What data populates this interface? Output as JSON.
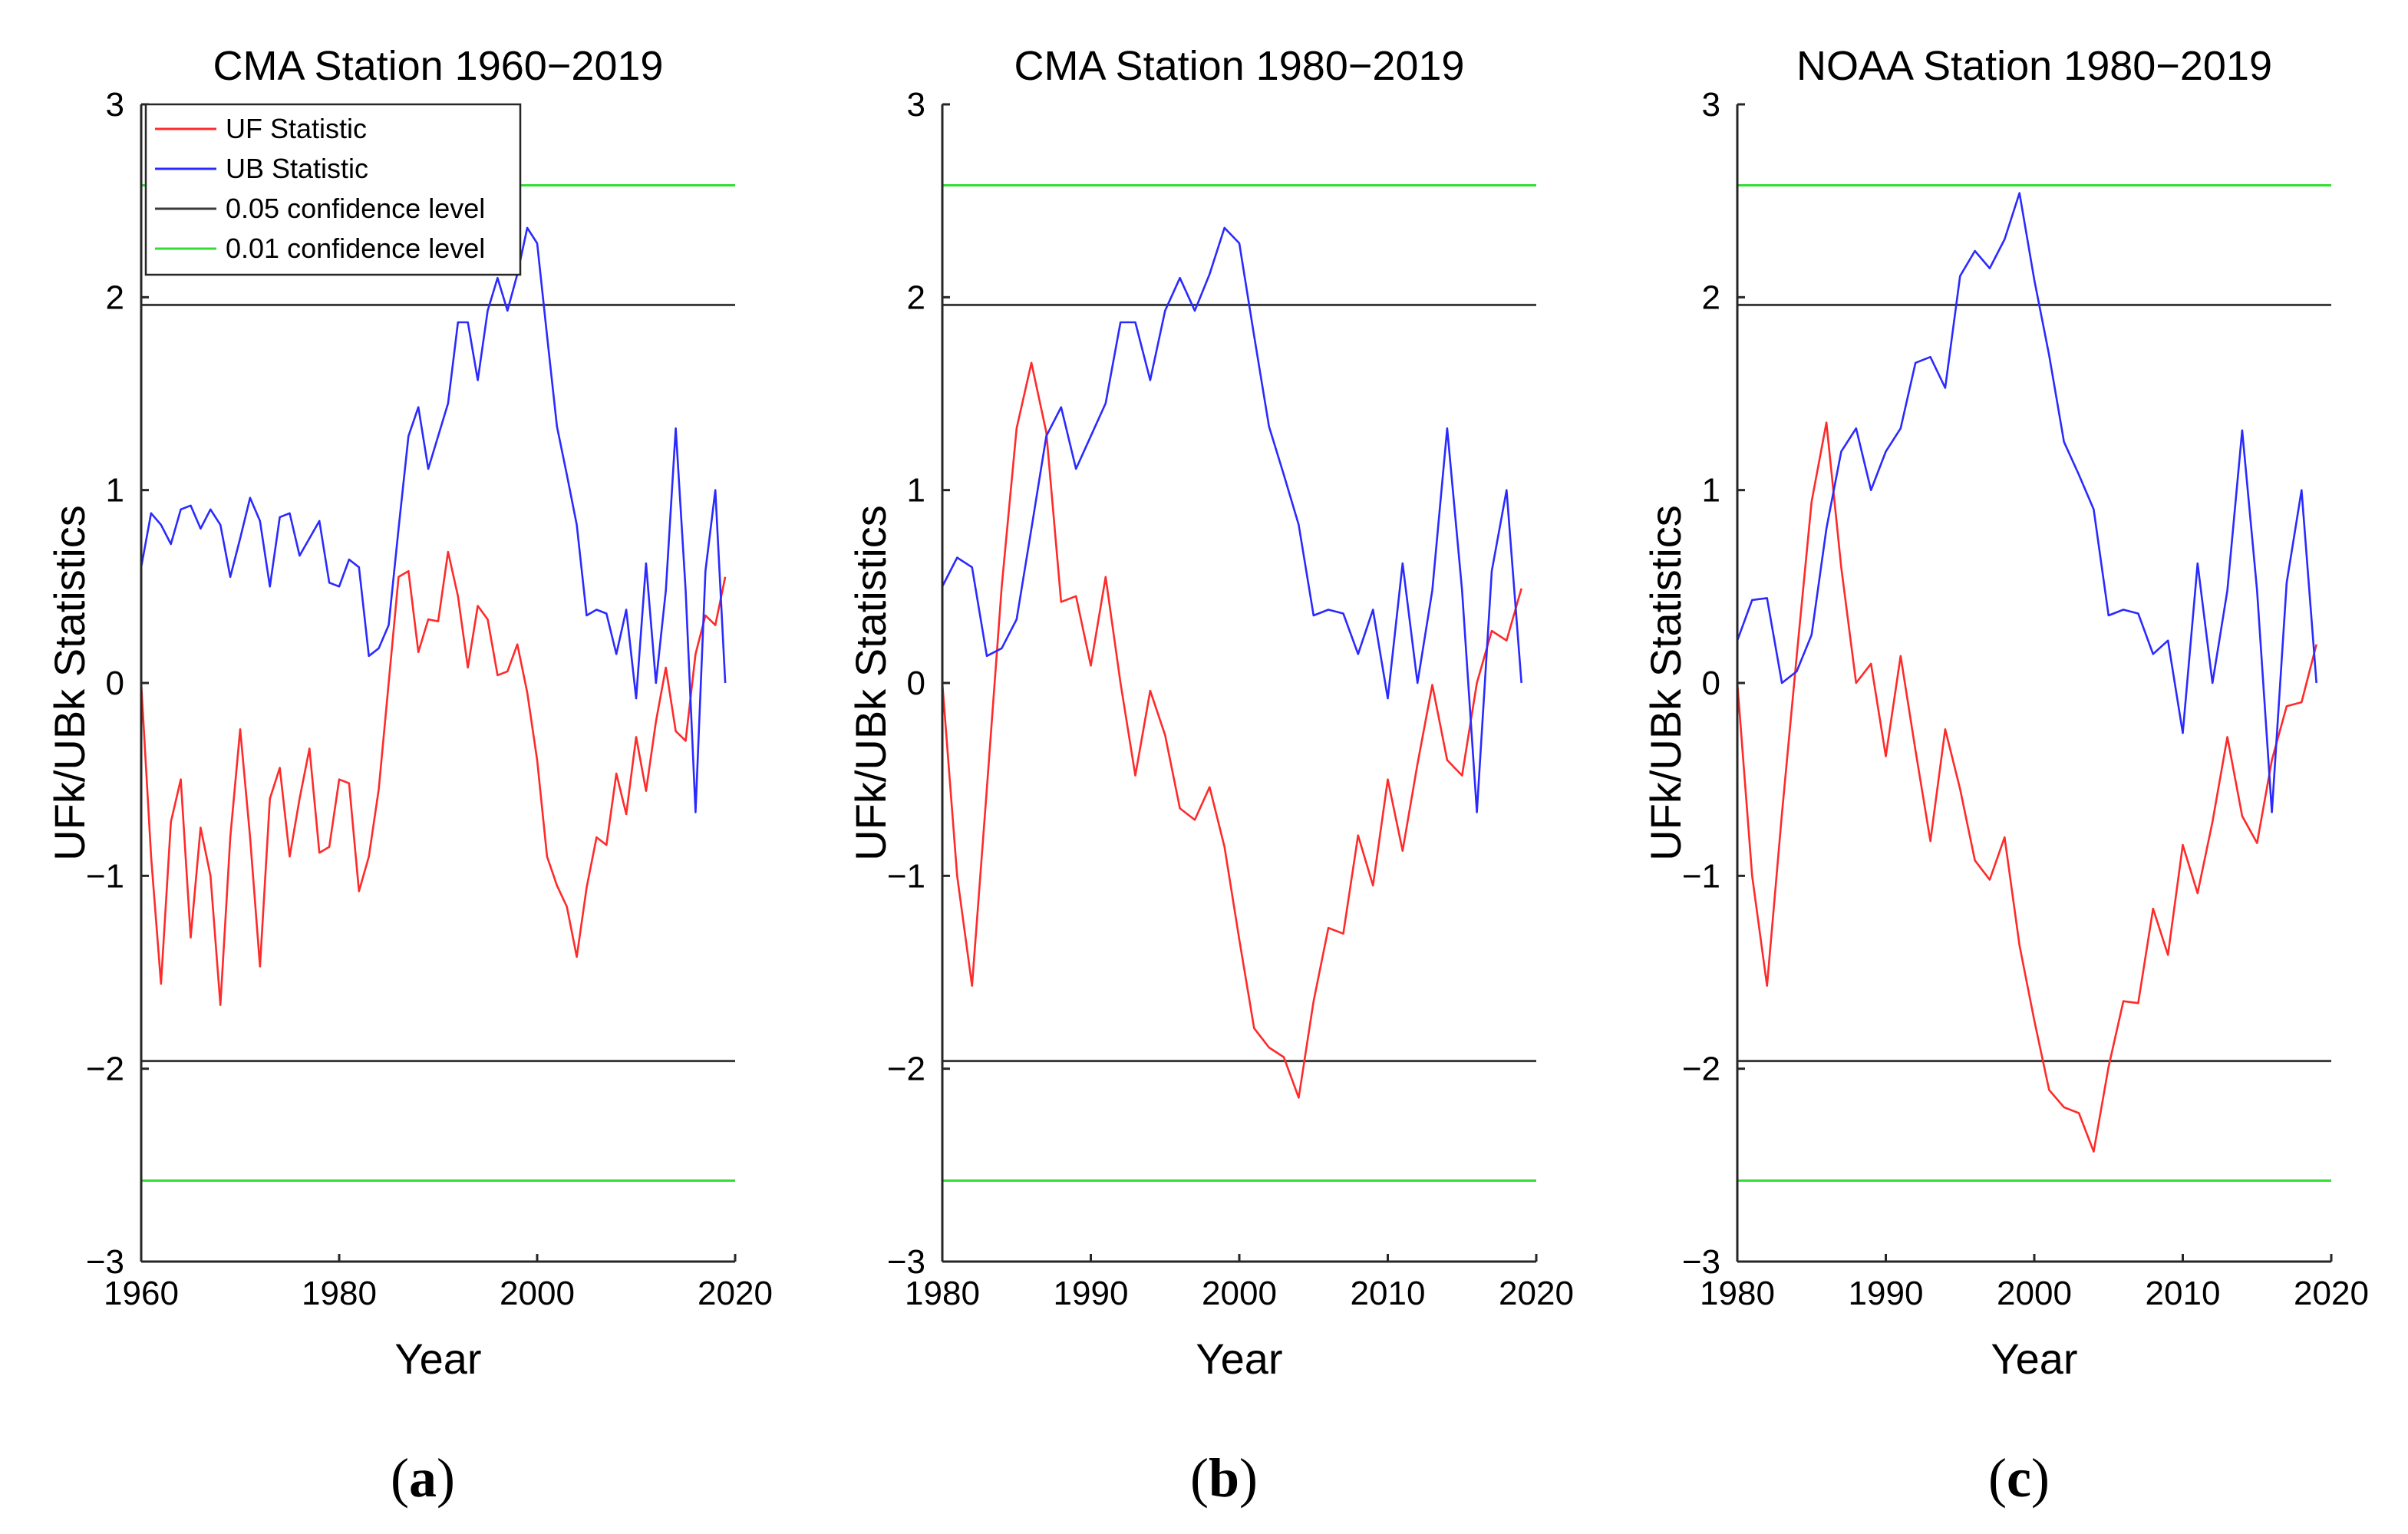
{
  "colors": {
    "uf": "#ff2a2a",
    "ub": "#2a2aff",
    "c05": "#3a3a3a",
    "c01": "#33dd33"
  },
  "legend": {
    "uf": "UF Statistic",
    "ub": "UB Statistic",
    "c05": "0.05 confidence level",
    "c01": "0.01 confidence level"
  },
  "chart_data": [
    {
      "type": "line",
      "panel_label": "a",
      "title": "CMA Station 1960−2019",
      "xlabel": "Year",
      "ylabel": "UFk/UBk Statistics",
      "xlim": [
        1960,
        2020
      ],
      "ylim": [
        -3,
        3
      ],
      "xticks": [
        1960,
        1980,
        2000,
        2020
      ],
      "yticks": [
        -3,
        -2,
        -1,
        0,
        1,
        2,
        3
      ],
      "confidence_levels": {
        "p05": 1.96,
        "p01": 2.58
      },
      "legend_position": "top-left",
      "x_start": 1960,
      "series": [
        {
          "name": "UF Statistic",
          "key": "uf",
          "values": [
            0,
            -0.9,
            -1.56,
            -0.72,
            -0.5,
            -1.32,
            -0.75,
            -1.0,
            -1.67,
            -0.8,
            -0.24,
            -0.8,
            -1.47,
            -0.6,
            -0.44,
            -0.9,
            -0.6,
            -0.34,
            -0.88,
            -0.85,
            -0.5,
            -0.52,
            -1.08,
            -0.9,
            -0.55,
            0.0,
            0.55,
            0.58,
            0.16,
            0.33,
            0.32,
            0.68,
            0.45,
            0.08,
            0.4,
            0.33,
            0.04,
            0.06,
            0.2,
            -0.05,
            -0.4,
            -0.9,
            -1.05,
            -1.16,
            -1.42,
            -1.06,
            -0.8,
            -0.84,
            -0.47,
            -0.68,
            -0.28,
            -0.56,
            -0.2,
            0.08,
            -0.25,
            -0.3,
            0.15,
            0.35,
            0.3,
            0.55
          ]
        },
        {
          "name": "UB Statistic",
          "key": "ub",
          "values": [
            0.6,
            0.88,
            0.82,
            0.72,
            0.9,
            0.92,
            0.8,
            0.9,
            0.82,
            0.55,
            0.75,
            0.96,
            0.84,
            0.5,
            0.86,
            0.88,
            0.66,
            0.75,
            0.84,
            0.52,
            0.5,
            0.64,
            0.6,
            0.14,
            0.18,
            0.3,
            0.8,
            1.28,
            1.43,
            1.11,
            1.28,
            1.45,
            1.87,
            1.87,
            1.57,
            1.93,
            2.1,
            1.93,
            2.12,
            2.36,
            2.28,
            1.8,
            1.33,
            1.08,
            0.82,
            0.35,
            0.38,
            0.36,
            0.15,
            0.38,
            -0.08,
            0.62,
            0.0,
            0.48,
            1.32,
            0.48,
            -0.67,
            0.58,
            1.0,
            0.0
          ]
        }
      ]
    },
    {
      "type": "line",
      "panel_label": "b",
      "title": "CMA Station 1980−2019",
      "xlabel": "Year",
      "ylabel": "UFk/UBk Statistics",
      "xlim": [
        1980,
        2020
      ],
      "ylim": [
        -3,
        3
      ],
      "xticks": [
        1980,
        1990,
        2000,
        2010,
        2020
      ],
      "yticks": [
        -3,
        -2,
        -1,
        0,
        1,
        2,
        3
      ],
      "confidence_levels": {
        "p05": 1.96,
        "p01": 2.58
      },
      "x_start": 1980,
      "series": [
        {
          "name": "UF Statistic",
          "key": "uf",
          "values": [
            0,
            -1.0,
            -1.57,
            -0.55,
            0.5,
            1.32,
            1.66,
            1.3,
            0.42,
            0.45,
            0.09,
            0.55,
            0.0,
            -0.48,
            -0.04,
            -0.27,
            -0.65,
            -0.71,
            -0.54,
            -0.85,
            -1.33,
            -1.79,
            -1.89,
            -1.94,
            -2.15,
            -1.65,
            -1.27,
            -1.3,
            -0.79,
            -1.05,
            -0.5,
            -0.87,
            -0.42,
            -0.01,
            -0.4,
            -0.48,
            0.0,
            0.27,
            0.22,
            0.49
          ]
        },
        {
          "name": "UB Statistic",
          "key": "ub",
          "values": [
            0.5,
            0.65,
            0.6,
            0.14,
            0.18,
            0.33,
            0.8,
            1.28,
            1.43,
            1.11,
            1.28,
            1.45,
            1.87,
            1.87,
            1.57,
            1.93,
            2.1,
            1.93,
            2.12,
            2.36,
            2.28,
            1.8,
            1.33,
            1.08,
            0.82,
            0.35,
            0.38,
            0.36,
            0.15,
            0.38,
            -0.08,
            0.62,
            0.0,
            0.48,
            1.32,
            0.48,
            -0.67,
            0.58,
            1.0,
            0.0
          ]
        }
      ]
    },
    {
      "type": "line",
      "panel_label": "c",
      "title": "NOAA Station 1980−2019",
      "xlabel": "Year",
      "ylabel": "UFk/UBk Statistics",
      "xlim": [
        1980,
        2020
      ],
      "ylim": [
        -3,
        3
      ],
      "xticks": [
        1980,
        1990,
        2000,
        2010,
        2020
      ],
      "yticks": [
        -3,
        -2,
        -1,
        0,
        1,
        2,
        3
      ],
      "confidence_levels": {
        "p05": 1.96,
        "p01": 2.58
      },
      "x_start": 1980,
      "series": [
        {
          "name": "UF Statistic",
          "key": "uf",
          "values": [
            0,
            -1.0,
            -1.57,
            -0.68,
            0.14,
            0.94,
            1.35,
            0.6,
            0.0,
            0.1,
            -0.38,
            0.14,
            -0.35,
            -0.82,
            -0.24,
            -0.55,
            -0.92,
            -1.02,
            -0.8,
            -1.36,
            -1.75,
            -2.11,
            -2.2,
            -2.23,
            -2.43,
            -1.99,
            -1.65,
            -1.66,
            -1.17,
            -1.41,
            -0.84,
            -1.09,
            -0.72,
            -0.28,
            -0.69,
            -0.83,
            -0.4,
            -0.12,
            -0.1,
            0.2
          ]
        },
        {
          "name": "UB Statistic",
          "key": "ub",
          "values": [
            0.22,
            0.43,
            0.44,
            0.0,
            0.06,
            0.25,
            0.8,
            1.2,
            1.32,
            1.0,
            1.2,
            1.32,
            1.66,
            1.69,
            1.53,
            2.11,
            2.24,
            2.15,
            2.3,
            2.54,
            2.09,
            1.7,
            1.25,
            1.08,
            0.9,
            0.35,
            0.38,
            0.36,
            0.15,
            0.22,
            -0.26,
            0.62,
            0.0,
            0.48,
            1.31,
            0.48,
            -0.67,
            0.52,
            1.0,
            0.0
          ]
        }
      ]
    }
  ]
}
